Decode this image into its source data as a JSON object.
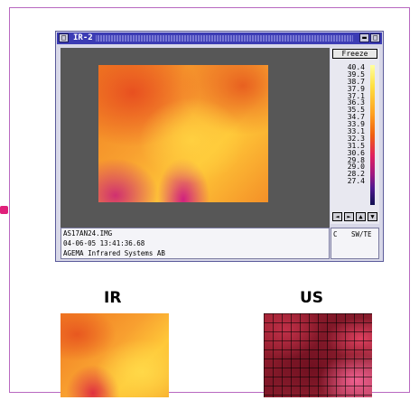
{
  "window": {
    "title": "IR-2",
    "close_glyph": "□",
    "min_glyph": "▬",
    "max_glyph": "□"
  },
  "freeze_label": "Freeze",
  "scale_labels": [
    "40.4",
    "39.5",
    "38.7",
    "37.9",
    "37.1",
    "36.3",
    "35.5",
    "34.7",
    "33.9",
    "33.1",
    "32.3",
    "31.5",
    "30.6",
    "29.8",
    "29.0",
    "28.2",
    "27.4"
  ],
  "nav_buttons": [
    "◄",
    "►",
    "▲",
    "▼"
  ],
  "info": {
    "filename": "AS17AN24.IMG",
    "datetime": "04-06-05 13:41:36.68",
    "system": "AGEMA Infrared Systems AB"
  },
  "unit": {
    "c": "C",
    "sw": "SW/TE"
  },
  "captions": {
    "ir": "IR",
    "us": "US"
  },
  "colors": {
    "frame": "#b868c0",
    "titlebar": "#3c3cb4",
    "image_bg": "#575757"
  }
}
